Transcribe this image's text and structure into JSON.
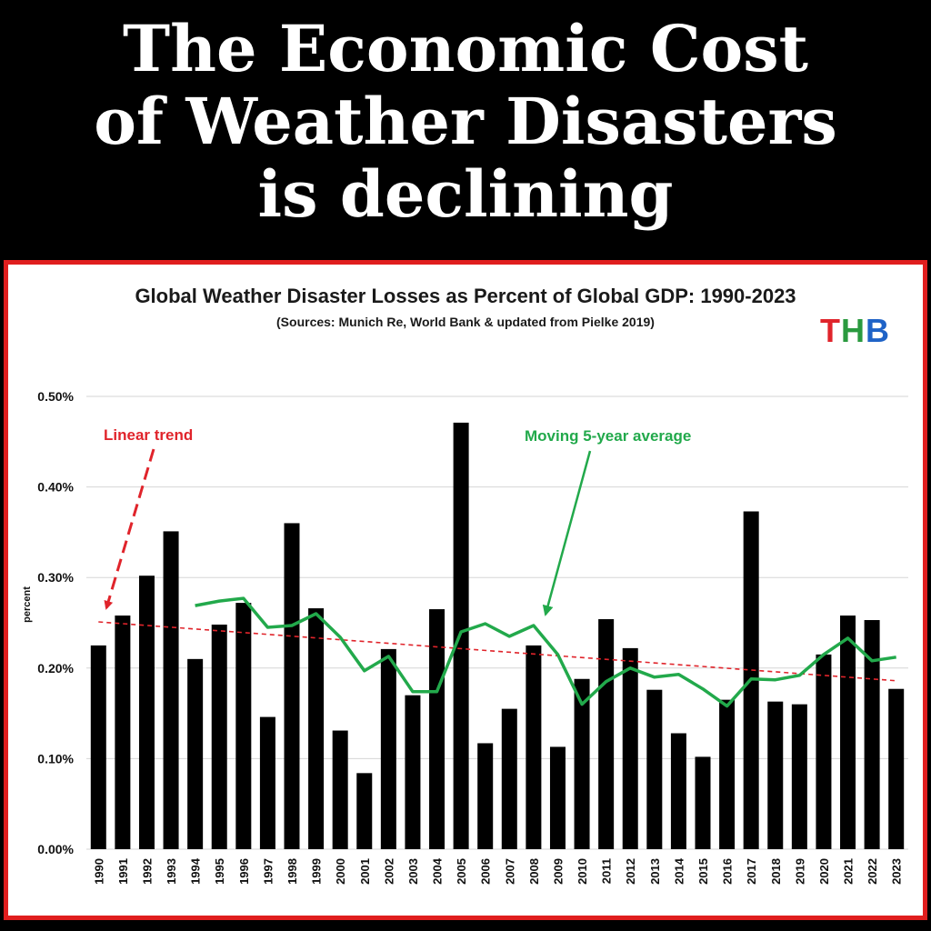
{
  "headline": {
    "line1": "The Economic Cost",
    "line2": "of Weather Disasters",
    "line3": "is declining"
  },
  "logo": {
    "t": "T",
    "h": "H",
    "b": "B"
  },
  "colors": {
    "bars": "#000000",
    "trend": "#e0242b",
    "average": "#22a94b",
    "frame": "#e01e1e"
  },
  "chart_data": {
    "type": "bar",
    "title": "Global Weather Disaster Losses as Percent of Global GDP: 1990-2023",
    "subtitle": "(Sources: Munich Re, World Bank & updated from Pielke 2019)",
    "ylabel": "percent",
    "xlabel": "",
    "ylim": [
      0,
      0.5
    ],
    "yticks": [
      "0.00%",
      "0.10%",
      "0.20%",
      "0.30%",
      "0.40%",
      "0.50%"
    ],
    "grid": true,
    "categories": [
      "1990",
      "1991",
      "1992",
      "1993",
      "1994",
      "1995",
      "1996",
      "1997",
      "1998",
      "1999",
      "2000",
      "2001",
      "2002",
      "2003",
      "2004",
      "2005",
      "2006",
      "2007",
      "2008",
      "2009",
      "2010",
      "2011",
      "2012",
      "2013",
      "2014",
      "2015",
      "2016",
      "2017",
      "2018",
      "2019",
      "2020",
      "2021",
      "2022",
      "2023"
    ],
    "values": [
      0.225,
      0.258,
      0.302,
      0.351,
      0.21,
      0.248,
      0.272,
      0.146,
      0.36,
      0.266,
      0.131,
      0.084,
      0.221,
      0.17,
      0.265,
      0.471,
      0.117,
      0.155,
      0.225,
      0.113,
      0.188,
      0.254,
      0.222,
      0.176,
      0.128,
      0.102,
      0.165,
      0.373,
      0.163,
      0.16,
      0.215,
      0.258,
      0.253,
      0.177
    ],
    "moving_average": {
      "label": "Moving 5-year average",
      "start_year": "1994",
      "values": [
        0.269,
        0.274,
        0.277,
        0.245,
        0.247,
        0.26,
        0.234,
        0.197,
        0.213,
        0.174,
        0.174,
        0.24,
        0.249,
        0.235,
        0.247,
        0.215,
        0.16,
        0.185,
        0.2,
        0.19,
        0.193,
        0.177,
        0.158,
        0.188,
        0.187,
        0.192,
        0.215,
        0.233,
        0.208,
        0.212
      ]
    },
    "linear_trend": {
      "label": "Linear trend",
      "start": 0.251,
      "end": 0.186
    }
  }
}
